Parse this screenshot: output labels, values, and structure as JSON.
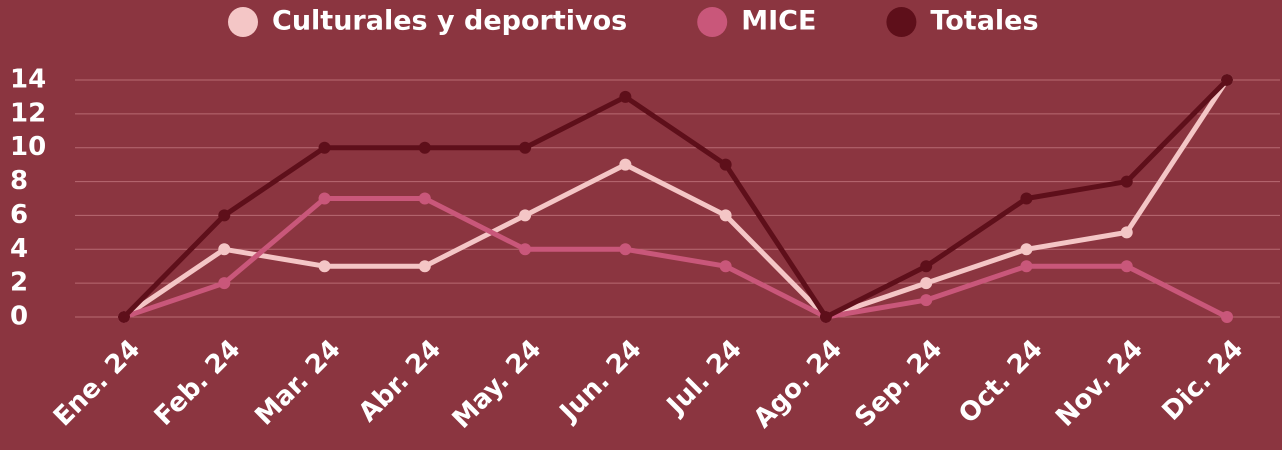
{
  "chart_data": {
    "type": "line",
    "categories": [
      "Ene. 24",
      "Feb. 24",
      "Mar. 24",
      "Abr. 24",
      "May. 24",
      "Jun. 24",
      "Jul. 24",
      "Ago. 24",
      "Sep. 24",
      "Oct. 24",
      "Nov. 24",
      "Dic. 24"
    ],
    "series": [
      {
        "name": "Culturales y deportivos",
        "color": "#f4c6c6",
        "values": [
          0,
          4,
          3,
          3,
          6,
          9,
          6,
          0,
          2,
          4,
          5,
          14
        ]
      },
      {
        "name": "MICE",
        "color": "#c9577a",
        "values": [
          0,
          2,
          7,
          7,
          4,
          4,
          3,
          0,
          1,
          3,
          3,
          0
        ]
      },
      {
        "name": "Totales",
        "color": "#5e0f1a",
        "values": [
          0,
          6,
          10,
          10,
          10,
          13,
          9,
          0,
          3,
          7,
          8,
          14
        ]
      }
    ],
    "ylim": [
      0,
      14
    ],
    "yticks": [
      0,
      2,
      4,
      6,
      8,
      10,
      12,
      14
    ],
    "grid": true,
    "legend": "top"
  }
}
